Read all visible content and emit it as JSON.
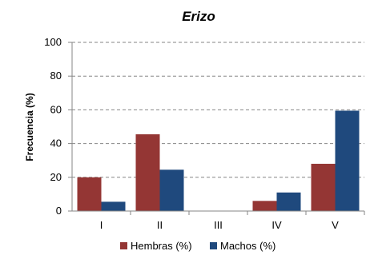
{
  "chart_data": {
    "type": "bar",
    "title": "Erizo",
    "xlabel": "",
    "ylabel": "Frecuencia (%)",
    "categories": [
      "I",
      "II",
      "III",
      "IV",
      "V"
    ],
    "series": [
      {
        "name": "Hembras (%)",
        "color": "#943634",
        "values": [
          20,
          45.5,
          0,
          6,
          28
        ]
      },
      {
        "name": "Machos (%)",
        "color": "#1f497d",
        "values": [
          5.5,
          24.5,
          0,
          11,
          59.5
        ]
      }
    ],
    "ylim": [
      0,
      100
    ],
    "yticks": [
      "0",
      "20",
      "40",
      "60",
      "80",
      "100"
    ],
    "grid": "horizontal-dashed",
    "legend_position": "bottom"
  }
}
